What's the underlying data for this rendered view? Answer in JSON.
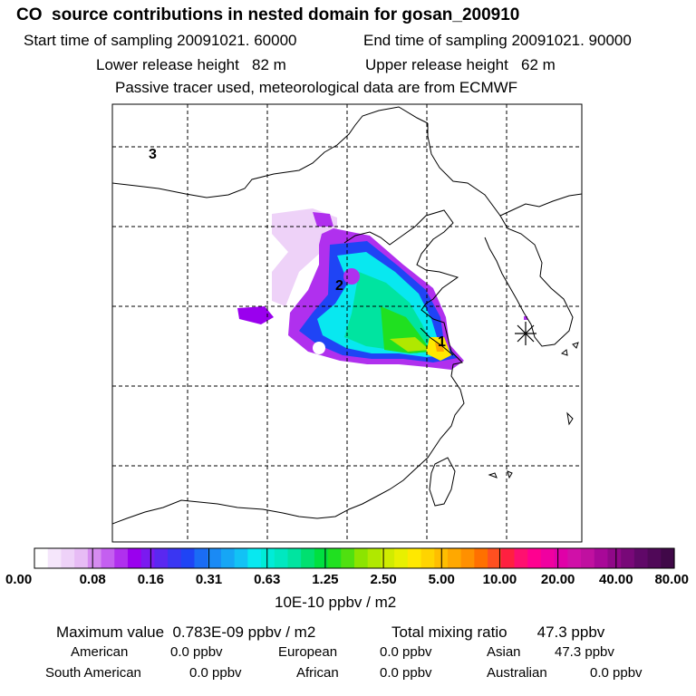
{
  "header": {
    "title": "CO  source contributions in nested domain for gosan_200910",
    "start": "Start time of sampling 20091021. 60000",
    "end": "End time of sampling 20091021. 90000",
    "lower": "Lower release height   82 m",
    "upper": "Upper release height   62 m",
    "tracer": "Passive tracer used, meteorological data are from ECMWF"
  },
  "chart_data": {
    "type": "heatmap",
    "title": "CO  source contributions in nested domain for gosan_200910",
    "map_labels": [
      "1",
      "2",
      "3"
    ],
    "colorbar": {
      "ticks": [
        "0.00",
        "0.08",
        "0.16",
        "0.31",
        "0.63",
        "1.25",
        "2.50",
        "5.00",
        "10.00",
        "20.00",
        "40.00",
        "80.00"
      ],
      "unit": "10E-10 ppbv / m2",
      "colors": [
        "#ffffff",
        "#f5e6fb",
        "#eed2f8",
        "#e7bcf5",
        "#d68cf0",
        "#c45ff0",
        "#b030ee",
        "#9a00ee",
        "#7a1af0",
        "#5a28f0",
        "#3a36f2",
        "#1f44f5",
        "#1a6cf5",
        "#1a8af5",
        "#16a6f5",
        "#12c2f5",
        "#08e8f0",
        "#00ecd8",
        "#00e8c0",
        "#00e4a0",
        "#00e070",
        "#00e040",
        "#20e020",
        "#50e010",
        "#8ce400",
        "#b0e800",
        "#d0ec00",
        "#e8f000",
        "#ffe800",
        "#ffd400",
        "#ffbe00",
        "#ffa800",
        "#ff9000",
        "#ff7000",
        "#ff5020",
        "#ff2040",
        "#ff1070",
        "#ff0090",
        "#f000a0",
        "#e000a8",
        "#d010a8",
        "#c010a0",
        "#a80898",
        "#900888",
        "#780878",
        "#600868",
        "#500858",
        "#400848"
      ]
    },
    "max_value": "0.783E-09",
    "total_mixing_ratio": "47.3"
  },
  "stats": {
    "max_label": "Maximum value  0.783E-09 ppbv / m2",
    "total_label": "Total mixing ratio       47.3 ppbv",
    "american_label": "American",
    "american_value": "0.0 ppbv",
    "european_label": "European",
    "european_value": "0.0 ppbv",
    "asian_label": "Asian",
    "asian_value": "47.3 ppbv",
    "south_american_label": "South American",
    "south_american_value": "0.0 ppbv",
    "african_label": "African",
    "african_value": "0.0 ppbv",
    "australian_label": "Australian",
    "australian_value": "0.0 ppbv"
  }
}
